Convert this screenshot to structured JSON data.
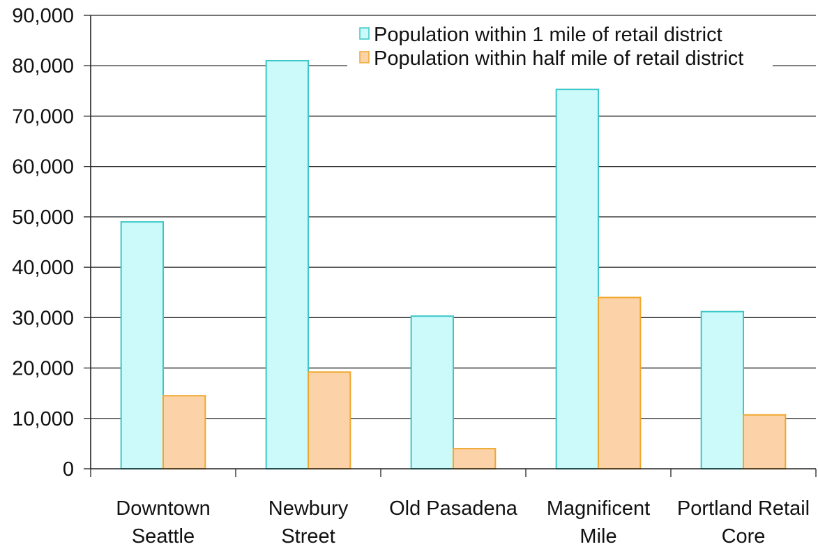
{
  "chart_data": {
    "type": "bar",
    "title": "",
    "xlabel": "",
    "ylabel": "",
    "ylim": [
      0,
      90000
    ],
    "yticks": [
      "0",
      "10,000",
      "20,000",
      "30,000",
      "40,000",
      "50,000",
      "60,000",
      "70,000",
      "80,000",
      "90,000"
    ],
    "grid": true,
    "legend_position": "top-right",
    "categories": [
      [
        "Downtown",
        "Seattle"
      ],
      [
        "Newbury",
        "Street"
      ],
      [
        "Old Pasadena"
      ],
      [
        "Magnificent",
        "Mile"
      ],
      [
        "Portland Retail",
        "Core"
      ]
    ],
    "series": [
      {
        "name": "Population within 1 mile of retail district",
        "color": "#ccf9f9",
        "stroke": "#3cc8c8",
        "values": [
          49000,
          81000,
          30300,
          75300,
          31200
        ]
      },
      {
        "name": "Population within half mile of retail district",
        "color": "#fcd3a8",
        "stroke": "#f0a72e",
        "values": [
          14500,
          19200,
          4000,
          34000,
          10700
        ]
      }
    ]
  }
}
